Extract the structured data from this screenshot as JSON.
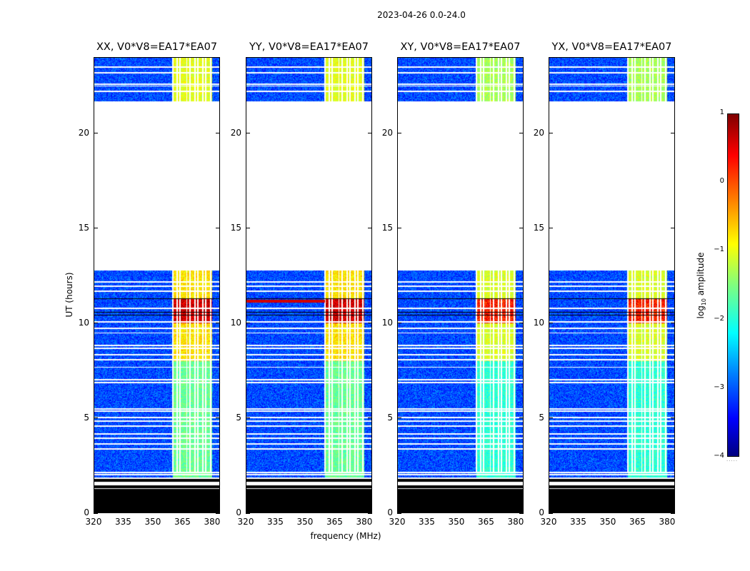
{
  "chart_data": {
    "type": "heatmap",
    "title": "2023-04-26 0.0-24.0",
    "xlabel": "frequency (MHz)",
    "ylabel": "UT (hours)",
    "x_ticks": [
      "320",
      "335",
      "350",
      "365",
      "380"
    ],
    "y_ticks": [
      "0",
      "5",
      "10",
      "15",
      "20"
    ],
    "xlim": [
      320,
      384
    ],
    "ylim": [
      0,
      24
    ],
    "colorbar": {
      "label_prefix": "log",
      "label_sub": "10",
      "label_suffix": " amplitude",
      "range": [
        -4,
        1
      ],
      "ticks": [
        "1",
        "0",
        "−1",
        "−2",
        "−3",
        "−4"
      ],
      "colormap": "jet"
    },
    "panels": [
      {
        "title": "XX, V0*V8=EA17*EA07",
        "polarization": "XX"
      },
      {
        "title": "YY, V0*V8=EA17*EA07",
        "polarization": "YY"
      },
      {
        "title": "XY, V0*V8=EA17*EA07",
        "polarization": "XY"
      },
      {
        "title": "YX, V0*V8=EA17*EA07",
        "polarization": "YX"
      }
    ],
    "features": {
      "no_data_hours": [
        12.8,
        21.7
      ],
      "black_band_hours": [
        0.0,
        1.9
      ],
      "strong_band_mhz": [
        360,
        380
      ],
      "peak_activity_hours": [
        10.0,
        11.3
      ]
    }
  }
}
